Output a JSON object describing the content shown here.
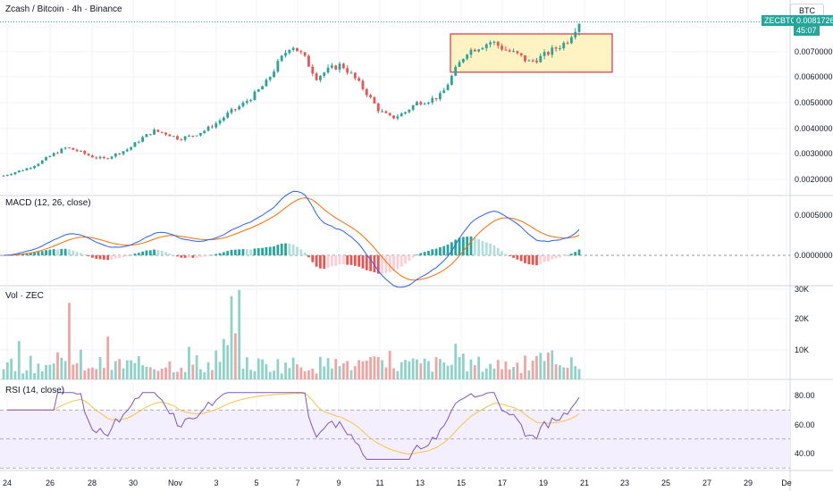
{
  "header": {
    "title": "Zcash / Bitcoin · 4h · Binance",
    "currency": "BTC",
    "ticker": "ZECBTC",
    "last_price": "0.0081726",
    "countdown": "45:07"
  },
  "panes": {
    "macd": {
      "title": "MACD (12, 26, close)"
    },
    "volume": {
      "title": "Vol · ZEC"
    },
    "rsi": {
      "title": "RSI (14, close)"
    }
  },
  "price_axis": [
    "0.0070000",
    "0.0060000",
    "0.0050000",
    "0.0040000",
    "0.0030000",
    "0.0020000"
  ],
  "macd_axis": [
    "0.0005000",
    "0.0000000"
  ],
  "volume_axis": [
    "30K",
    "20K",
    "10K"
  ],
  "rsi_axis": [
    "80.00",
    "60.00",
    "40.00"
  ],
  "time_axis": [
    "24",
    "26",
    "28",
    "30",
    "Nov",
    "3",
    "5",
    "7",
    "9",
    "11",
    "13",
    "15",
    "17",
    "19",
    "21",
    "23",
    "25",
    "27",
    "29",
    "De"
  ],
  "colors": {
    "up": "#26a69a",
    "down": "#ef5350",
    "macd_line": "#2962ff",
    "signal_line": "#ff6d00",
    "rsi_line": "#7e57c2",
    "rsi_ma": "#f7c544",
    "box_border": "#e03040",
    "box_fill": "#fff3c4"
  },
  "chart_data": {
    "type": "candlestick",
    "x_start": "Oct 23",
    "x_end": "Nov 21",
    "price_close_path": [
      0.00215,
      0.0023,
      0.00245,
      0.0027,
      0.003,
      0.00325,
      0.0031,
      0.0029,
      0.0028,
      0.003,
      0.0032,
      0.0036,
      0.0039,
      0.0038,
      0.0036,
      0.0037,
      0.0039,
      0.0042,
      0.0046,
      0.0049,
      0.0053,
      0.0058,
      0.0066,
      0.0073,
      0.0068,
      0.006,
      0.0063,
      0.0065,
      0.006,
      0.0054,
      0.0047,
      0.0044,
      0.0046,
      0.005,
      0.0051,
      0.0053,
      0.0062,
      0.007,
      0.0072,
      0.0074,
      0.0071,
      0.0069,
      0.0066,
      0.0068,
      0.0071,
      0.0074,
      0.0081726
    ],
    "highlight_box": {
      "price_from": 0.0062,
      "price_to": 0.0077,
      "date_from": "Nov 15",
      "date_to": "Nov 22"
    },
    "macd": {
      "ylim_label": "0.0005000"
    },
    "rsi": {
      "bands": [
        70,
        30
      ],
      "ylim": [
        25,
        85
      ]
    },
    "volume": {
      "ylim": [
        0,
        32000
      ]
    }
  }
}
